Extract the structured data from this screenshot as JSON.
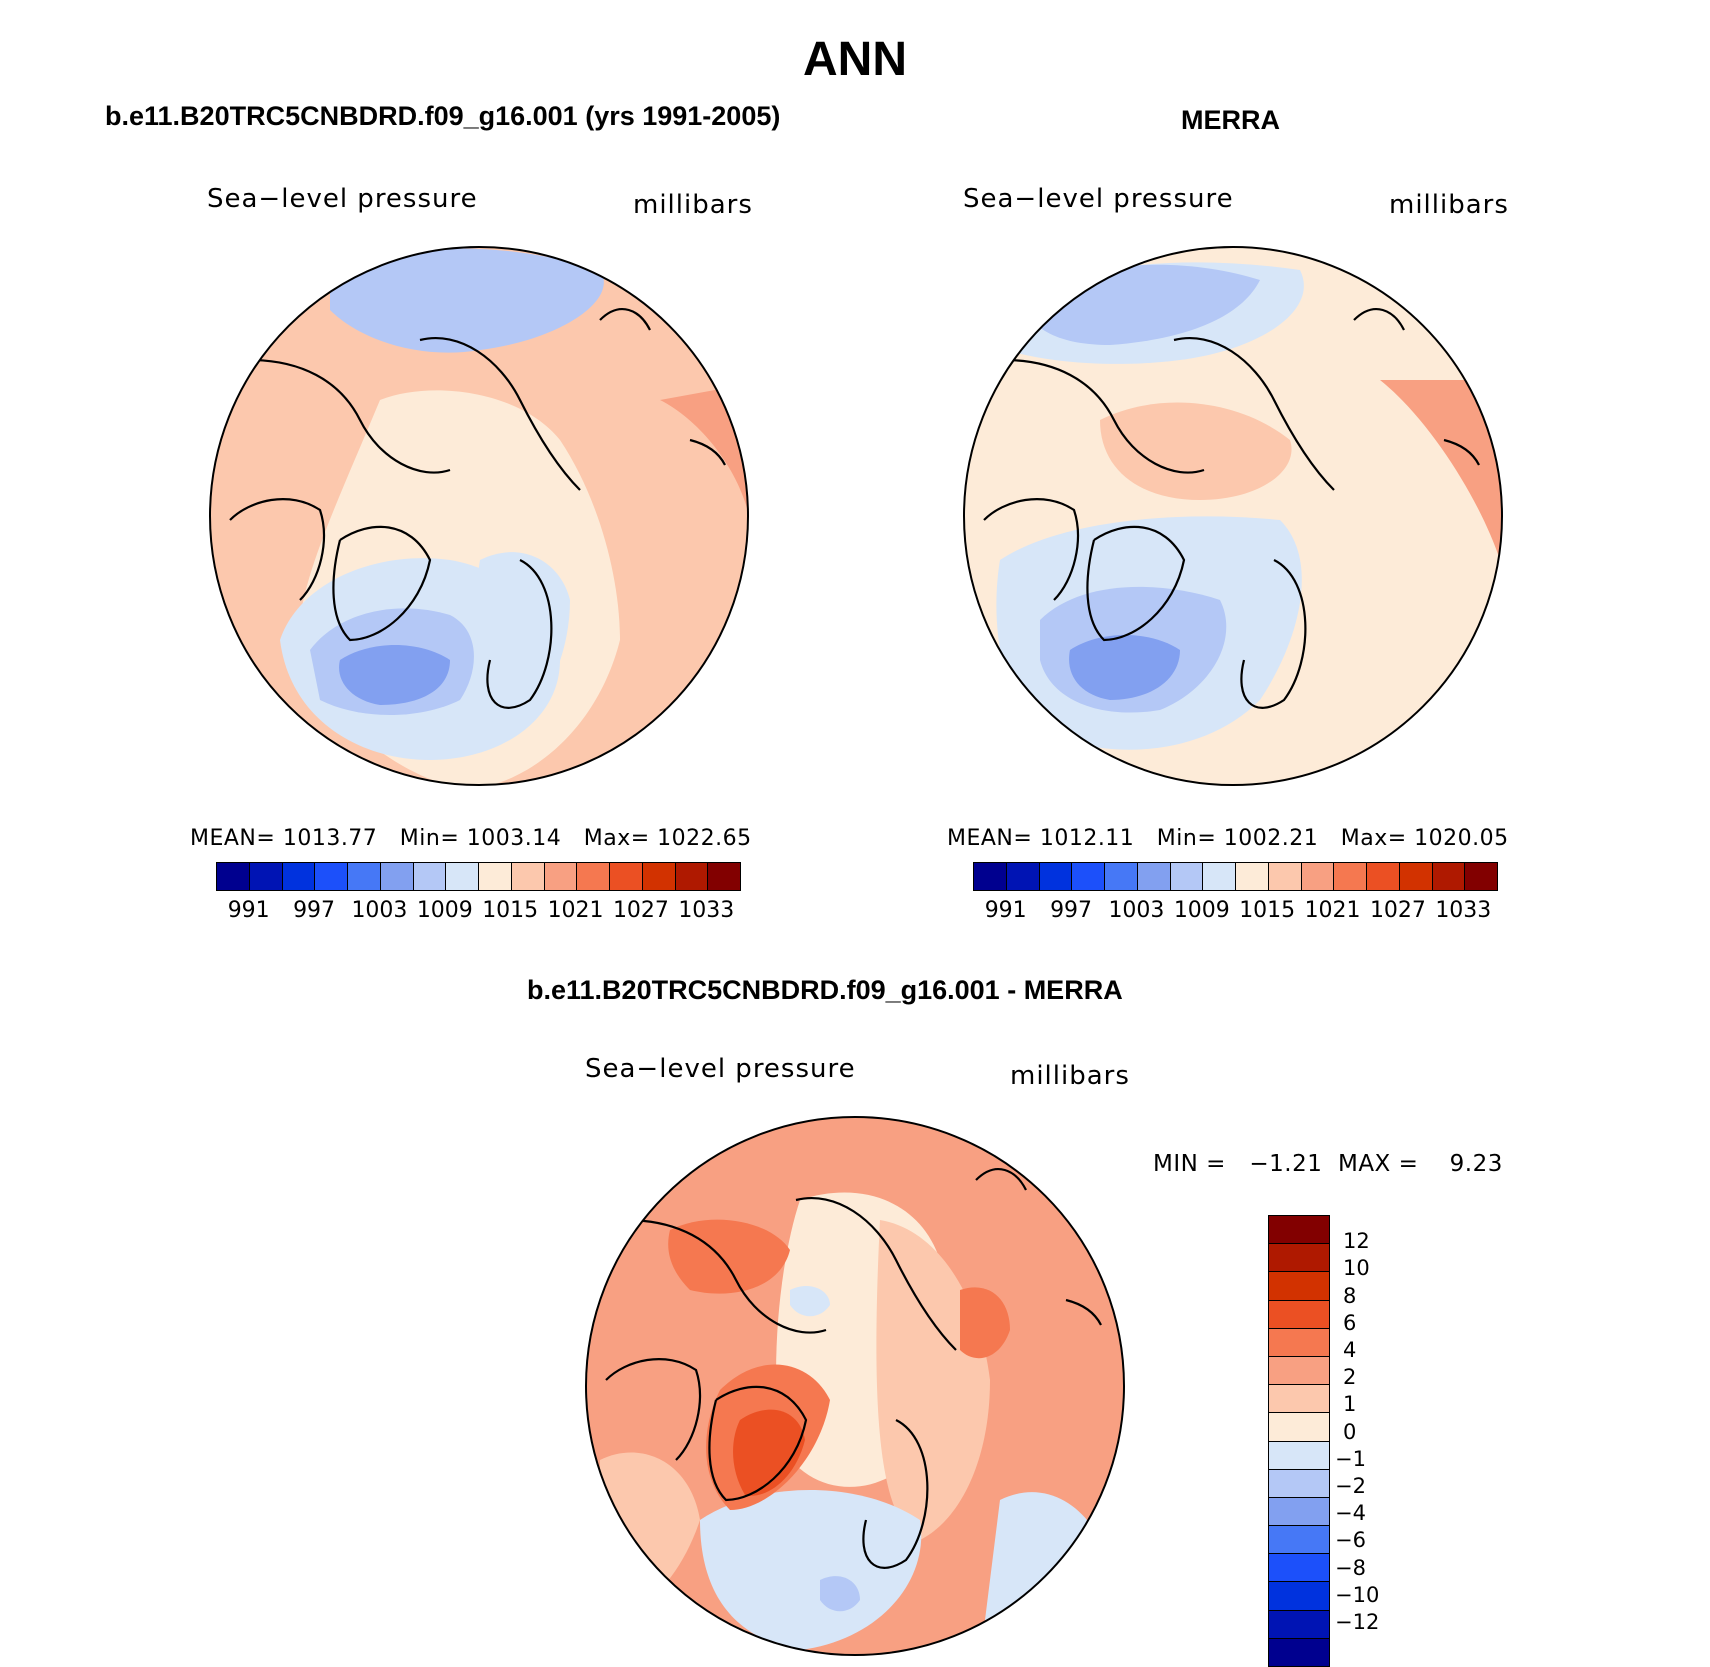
{
  "page": {
    "title": "ANN"
  },
  "panels": [
    {
      "title": "b.e11.B20TRC5CNBDRD.f09_g16.001 (yrs 1991-2005)",
      "left_label": "Sea−level pressure",
      "right_label": "millibars",
      "stats": {
        "mean_label": "MEAN=",
        "mean": "1013.77",
        "min_label": "Min=",
        "min": "1003.14",
        "max_label": "Max=",
        "max": "1022.65"
      }
    },
    {
      "title": "MERRA",
      "left_label": "Sea−level pressure",
      "right_label": "millibars",
      "stats": {
        "mean_label": "MEAN=",
        "mean": "1012.11",
        "min_label": "Min=",
        "min": "1002.21",
        "max_label": "Max=",
        "max": "1020.05"
      }
    },
    {
      "title": "b.e11.B20TRC5CNBDRD.f09_g16.001 - MERRA",
      "left_label": "Sea−level pressure",
      "right_label": "millibars",
      "stats": {
        "min_label": "MIN =",
        "min": "−1.21",
        "max_label": "MAX =",
        "max": "9.23"
      }
    }
  ],
  "abs_colorbar": {
    "colors": [
      "#00008f",
      "#0014b4",
      "#0032de",
      "#1c50fa",
      "#4678f6",
      "#82a0f0",
      "#b4c8f6",
      "#d7e6f8",
      "#fdebd8",
      "#fcc8ad",
      "#f8a082",
      "#f57850",
      "#eb5023",
      "#d23200",
      "#af1900",
      "#820000"
    ],
    "ticks": [
      "991",
      "997",
      "1003",
      "1009",
      "1015",
      "1021",
      "1027",
      "1033"
    ]
  },
  "diff_colorbar": {
    "colors": [
      "#820000",
      "#af1900",
      "#d23200",
      "#eb5023",
      "#f57850",
      "#f8a082",
      "#fcc8ad",
      "#fdebd8",
      "#d7e6f8",
      "#b4c8f6",
      "#82a0f0",
      "#4678f6",
      "#1c50fa",
      "#0032de",
      "#0014b4",
      "#00008f"
    ],
    "ticks": [
      "12",
      "10",
      "8",
      "6",
      "4",
      "2",
      "1",
      "0",
      "−1",
      "−2",
      "−4",
      "−6",
      "−8",
      "−10",
      "−12"
    ]
  },
  "map_colors": {
    "background": "#fdebd8",
    "light_salmon": "#fcc8ad",
    "salmon": "#f8a082",
    "orange": "#f57850",
    "red": "#eb5023",
    "light_blue": "#d7e6f8",
    "blue1": "#b4c8f6",
    "blue2": "#82a0f0"
  }
}
